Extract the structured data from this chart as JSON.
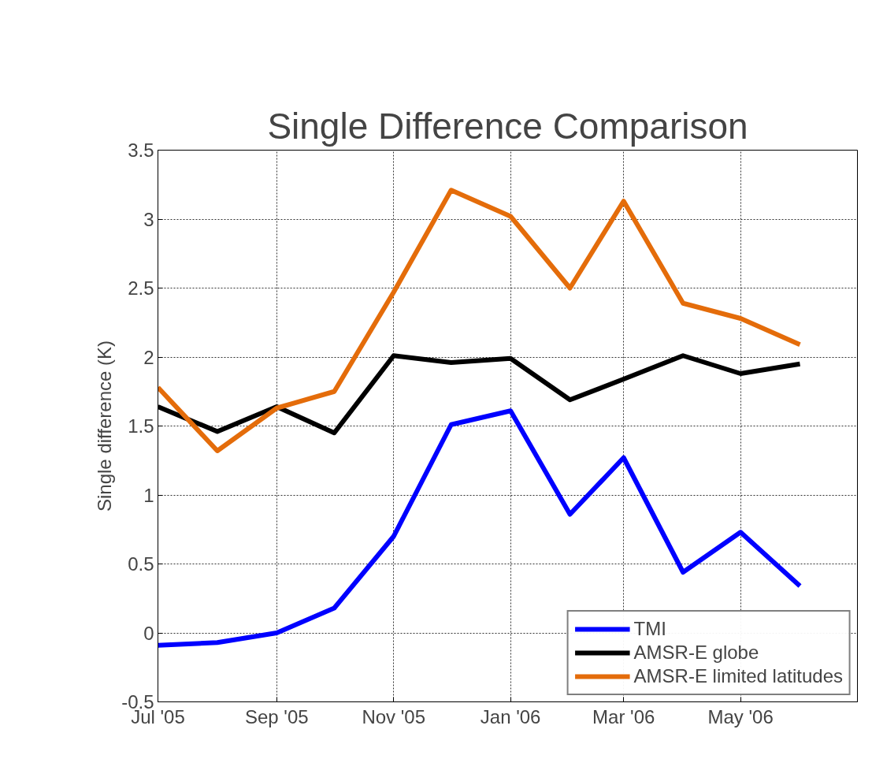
{
  "chart_data": {
    "type": "line",
    "title": "Single Difference Comparison",
    "ylabel": "Single difference (K)",
    "x": [
      "2005-07",
      "2005-08",
      "2005-09",
      "2005-10",
      "2005-11",
      "2005-12",
      "2006-01",
      "2006-02",
      "2006-03",
      "2006-04",
      "2006-05",
      "2006-06"
    ],
    "series": [
      {
        "name": "TMI",
        "color": "#0000ff",
        "values": [
          -0.09,
          -0.07,
          0.0,
          0.18,
          0.7,
          1.51,
          1.61,
          0.86,
          1.27,
          0.44,
          0.73,
          0.34
        ]
      },
      {
        "name": "AMSR-E globe",
        "color": "#000000",
        "values": [
          1.64,
          1.46,
          1.64,
          1.45,
          2.01,
          1.96,
          1.99,
          1.69,
          1.84,
          2.01,
          1.88,
          1.95
        ]
      },
      {
        "name": "AMSR-E limited latitudes",
        "color": "#e46c0a",
        "values": [
          1.78,
          1.32,
          1.63,
          1.75,
          2.47,
          3.21,
          3.02,
          2.5,
          3.13,
          2.39,
          2.28,
          2.09
        ]
      }
    ],
    "xlim": [
      "2005-07",
      "2006-07"
    ],
    "xticks": [
      {
        "value": "2005-07",
        "label": "Jul '05"
      },
      {
        "value": "2005-09",
        "label": "Sep '05"
      },
      {
        "value": "2005-11",
        "label": "Nov '05"
      },
      {
        "value": "2006-01",
        "label": "Jan '06"
      },
      {
        "value": "2006-03",
        "label": "Mar '06"
      },
      {
        "value": "2006-05",
        "label": "May '06"
      },
      {
        "value": "2006-07",
        "label": null
      }
    ],
    "ylim": [
      -0.5,
      3.5
    ],
    "yticks": [
      -0.5,
      0,
      0.5,
      1,
      1.5,
      2,
      2.5,
      3,
      3.5
    ],
    "grid": true,
    "legend": "bottom right",
    "marker": "none",
    "line_style": "solid"
  }
}
